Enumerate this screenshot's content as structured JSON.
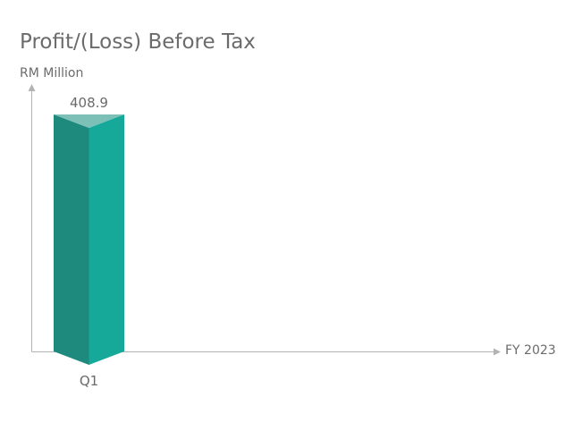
{
  "chart_data": {
    "type": "bar",
    "title": "Profit/(Loss) Before Tax",
    "ylabel": "RM Million",
    "xlabel": "FY 2023",
    "categories": [
      "Q1"
    ],
    "values": [
      408.9
    ],
    "value_labels": [
      "408.9"
    ],
    "ylim": [
      0,
      408.9
    ],
    "grid": false,
    "legend": "none",
    "colors": {
      "bar_left": "#1e8a7e",
      "bar_right": "#16a898",
      "bar_top": "#7dc0b8",
      "axis": "#b3b3b3"
    }
  }
}
